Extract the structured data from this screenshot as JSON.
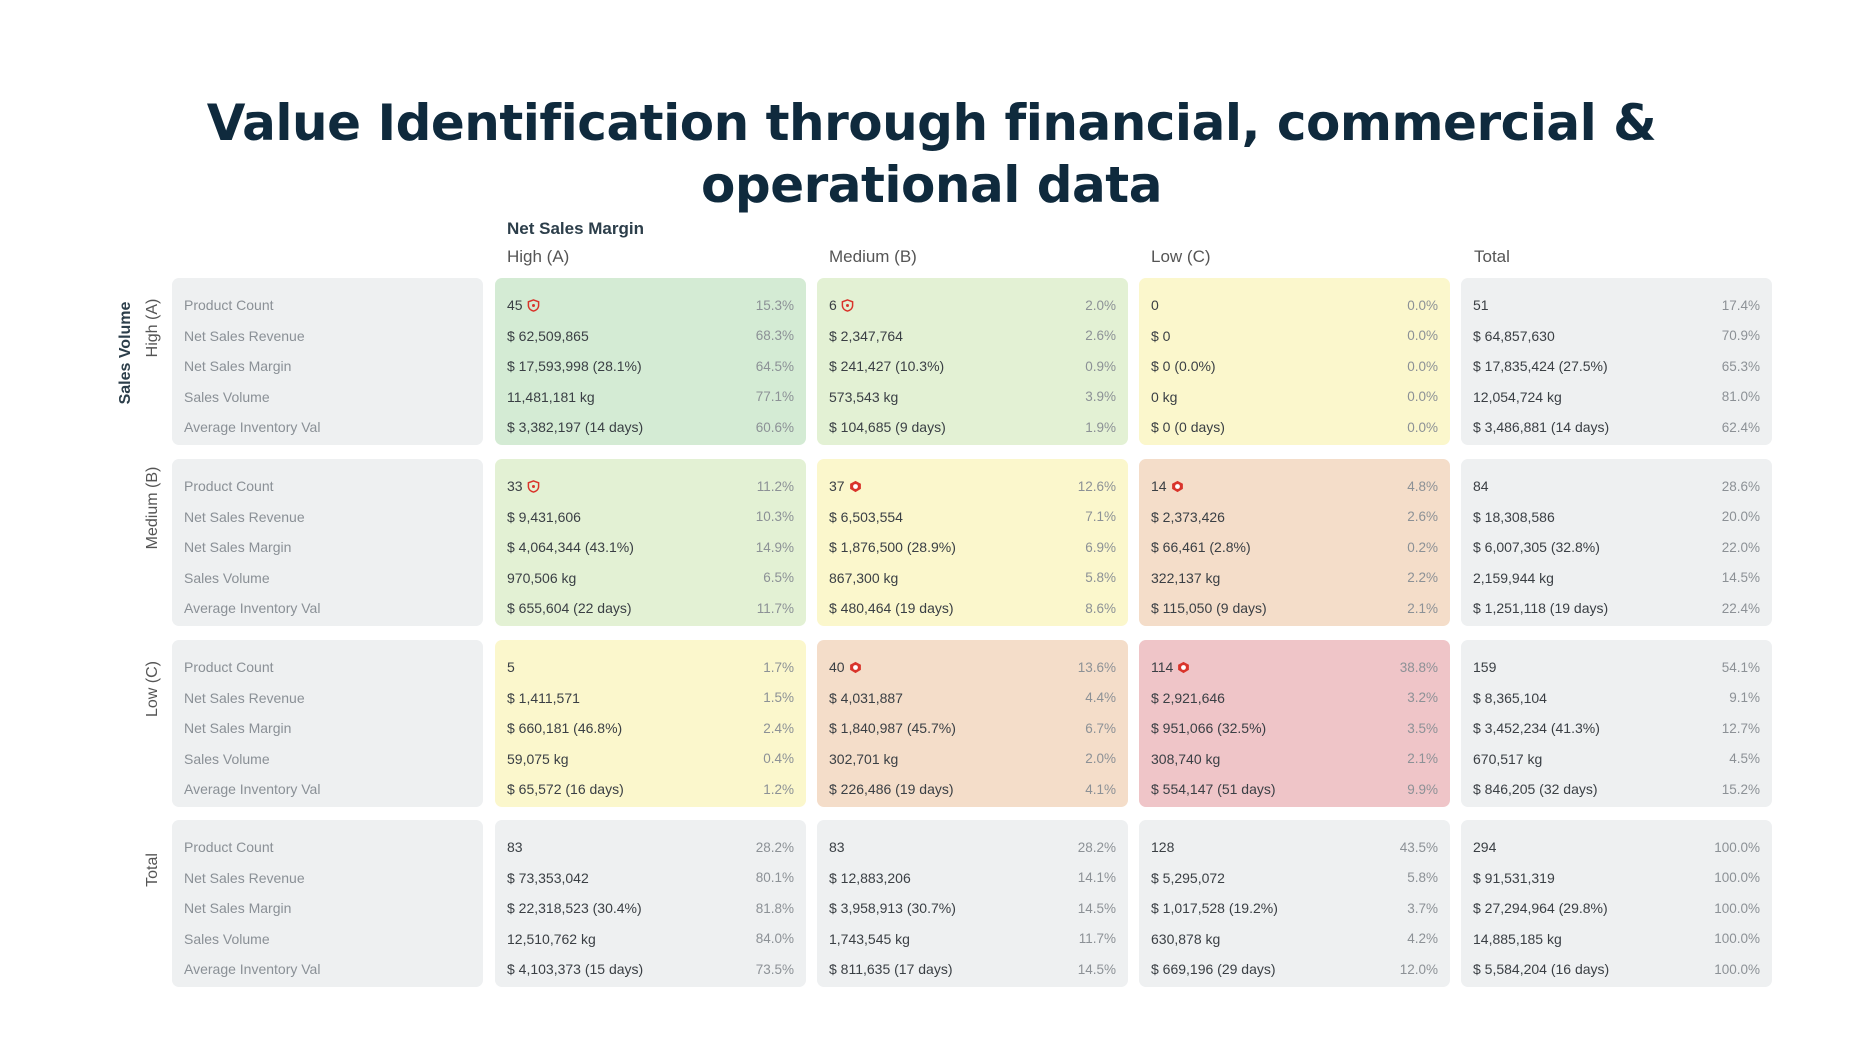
{
  "title": {
    "line1": "Value Identification through financial, commercial &",
    "line2": "operational data"
  },
  "x_axis_title": "Net Sales Margin",
  "y_axis_title": "Sales Volume",
  "columns": [
    "High (A)",
    "Medium (B)",
    "Low (C)",
    "Total"
  ],
  "rows": [
    "High (A)",
    "Medium (B)",
    "Low (C)",
    "Total"
  ],
  "metric_labels": [
    "Product Count",
    "Net Sales Revenue",
    "Net Sales Margin",
    "Sales Volume",
    "Average Inventory Val"
  ],
  "colors": {
    "green": "#d4ebd4",
    "light_green": "#e3f1d4",
    "yellow": "#fbf7cc",
    "orange": "#f4ddc9",
    "red": "#efc5c8",
    "grey": "#eef0f1",
    "badge_red": "#d9342b"
  },
  "cells": [
    [
      {
        "color": "green",
        "badge": "shield-icon",
        "values": [
          "45",
          "$ 62,509,865",
          "$ 17,593,998 (28.1%)",
          "11,481,181 kg",
          "$ 3,382,197 (14 days)"
        ],
        "pcts": [
          "15.3%",
          "68.3%",
          "64.5%",
          "77.1%",
          "60.6%"
        ]
      },
      {
        "color": "light_green",
        "badge": "shield-icon",
        "values": [
          "6",
          "$ 2,347,764",
          "$ 241,427 (10.3%)",
          "573,543 kg",
          "$ 104,685 (9 days)"
        ],
        "pcts": [
          "2.0%",
          "2.6%",
          "0.9%",
          "3.9%",
          "1.9%"
        ]
      },
      {
        "color": "yellow",
        "badge": "",
        "values": [
          "0",
          "$ 0",
          "$ 0 (0.0%)",
          "0 kg",
          "$ 0 (0 days)"
        ],
        "pcts": [
          "0.0%",
          "0.0%",
          "0.0%",
          "0.0%",
          "0.0%"
        ]
      },
      {
        "color": "grey",
        "badge": "",
        "values": [
          "51",
          "$ 64,857,630",
          "$ 17,835,424 (27.5%)",
          "12,054,724 kg",
          "$ 3,486,881 (14 days)"
        ],
        "pcts": [
          "17.4%",
          "70.9%",
          "65.3%",
          "81.0%",
          "62.4%"
        ]
      }
    ],
    [
      {
        "color": "light_green",
        "badge": "shield-icon",
        "values": [
          "33",
          "$ 9,431,606",
          "$ 4,064,344 (43.1%)",
          "970,506 kg",
          "$ 655,604 (22 days)"
        ],
        "pcts": [
          "11.2%",
          "10.3%",
          "14.9%",
          "6.5%",
          "11.7%"
        ]
      },
      {
        "color": "yellow",
        "badge": "alert-icon",
        "values": [
          "37",
          "$ 6,503,554",
          "$ 1,876,500 (28.9%)",
          "867,300 kg",
          "$ 480,464 (19 days)"
        ],
        "pcts": [
          "12.6%",
          "7.1%",
          "6.9%",
          "5.8%",
          "8.6%"
        ]
      },
      {
        "color": "orange",
        "badge": "alert-icon",
        "values": [
          "14",
          "$ 2,373,426",
          "$ 66,461 (2.8%)",
          "322,137 kg",
          "$ 115,050 (9 days)"
        ],
        "pcts": [
          "4.8%",
          "2.6%",
          "0.2%",
          "2.2%",
          "2.1%"
        ]
      },
      {
        "color": "grey",
        "badge": "",
        "values": [
          "84",
          "$ 18,308,586",
          "$ 6,007,305 (32.8%)",
          "2,159,944 kg",
          "$ 1,251,118 (19 days)"
        ],
        "pcts": [
          "28.6%",
          "20.0%",
          "22.0%",
          "14.5%",
          "22.4%"
        ]
      }
    ],
    [
      {
        "color": "yellow",
        "badge": "",
        "values": [
          "5",
          "$ 1,411,571",
          "$ 660,181 (46.8%)",
          "59,075 kg",
          "$ 65,572 (16 days)"
        ],
        "pcts": [
          "1.7%",
          "1.5%",
          "2.4%",
          "0.4%",
          "1.2%"
        ]
      },
      {
        "color": "orange",
        "badge": "alert-icon",
        "values": [
          "40",
          "$ 4,031,887",
          "$ 1,840,987 (45.7%)",
          "302,701 kg",
          "$ 226,486 (19 days)"
        ],
        "pcts": [
          "13.6%",
          "4.4%",
          "6.7%",
          "2.0%",
          "4.1%"
        ]
      },
      {
        "color": "red",
        "badge": "alert-icon",
        "values": [
          "114",
          "$ 2,921,646",
          "$ 951,066 (32.5%)",
          "308,740 kg",
          "$ 554,147 (51 days)"
        ],
        "pcts": [
          "38.8%",
          "3.2%",
          "3.5%",
          "2.1%",
          "9.9%"
        ]
      },
      {
        "color": "grey",
        "badge": "",
        "values": [
          "159",
          "$ 8,365,104",
          "$ 3,452,234 (41.3%)",
          "670,517 kg",
          "$ 846,205 (32 days)"
        ],
        "pcts": [
          "54.1%",
          "9.1%",
          "12.7%",
          "4.5%",
          "15.2%"
        ]
      }
    ],
    [
      {
        "color": "grey",
        "badge": "",
        "values": [
          "83",
          "$ 73,353,042",
          "$ 22,318,523 (30.4%)",
          "12,510,762 kg",
          "$ 4,103,373 (15 days)"
        ],
        "pcts": [
          "28.2%",
          "80.1%",
          "81.8%",
          "84.0%",
          "73.5%"
        ]
      },
      {
        "color": "grey",
        "badge": "",
        "values": [
          "83",
          "$ 12,883,206",
          "$ 3,958,913 (30.7%)",
          "1,743,545 kg",
          "$ 811,635 (17 days)"
        ],
        "pcts": [
          "28.2%",
          "14.1%",
          "14.5%",
          "11.7%",
          "14.5%"
        ]
      },
      {
        "color": "grey",
        "badge": "",
        "values": [
          "128",
          "$ 5,295,072",
          "$ 1,017,528 (19.2%)",
          "630,878 kg",
          "$ 669,196 (29 days)"
        ],
        "pcts": [
          "43.5%",
          "5.8%",
          "3.7%",
          "4.2%",
          "12.0%"
        ]
      },
      {
        "color": "grey",
        "badge": "",
        "values": [
          "294",
          "$ 91,531,319",
          "$ 27,294,964 (29.8%)",
          "14,885,185 kg",
          "$ 5,584,204 (16 days)"
        ],
        "pcts": [
          "100.0%",
          "100.0%",
          "100.0%",
          "100.0%",
          "100.0%"
        ]
      }
    ]
  ]
}
